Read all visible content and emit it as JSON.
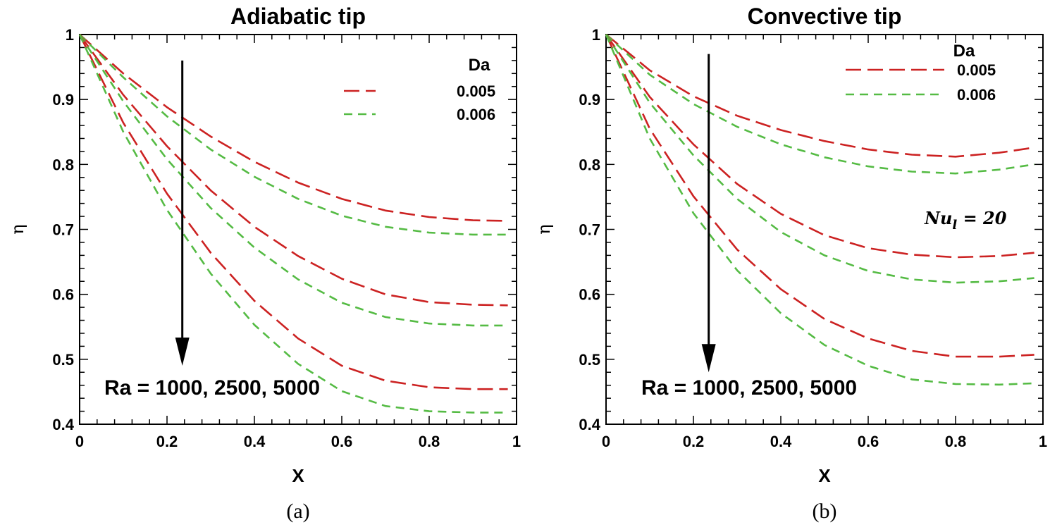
{
  "chart_data": [
    {
      "type": "line",
      "panel_caption": "(a)",
      "title": "Adiabatic tip",
      "xlabel": "X",
      "ylabel": "η",
      "xlim": [
        0,
        1
      ],
      "ylim": [
        0.4,
        1
      ],
      "xticks": [
        "0",
        "0.2",
        "0.4",
        "0.6",
        "0.8",
        "1"
      ],
      "yticks": [
        "0.4",
        "0.5",
        "0.6",
        "0.7",
        "0.8",
        "0.9",
        "1"
      ],
      "grid": false,
      "legend": {
        "title": "Da",
        "placement": "top-right",
        "entries": [
          "0.005",
          "0.006"
        ]
      },
      "annotation": "Ra = 1000, 2500, 5000",
      "arrow": {
        "x": 0.235,
        "y_start": 0.96,
        "y_end": 0.49
      },
      "x": [
        0,
        0.1,
        0.2,
        0.3,
        0.4,
        0.5,
        0.6,
        0.7,
        0.8,
        0.9,
        0.98
      ],
      "series": [
        {
          "name": "0.005",
          "values": [
            1.0,
            0.94,
            0.888,
            0.843,
            0.804,
            0.772,
            0.747,
            0.729,
            0.719,
            0.714,
            0.713
          ]
        },
        {
          "name": "0.006",
          "values": [
            1.0,
            0.934,
            0.874,
            0.823,
            0.781,
            0.747,
            0.721,
            0.704,
            0.695,
            0.692,
            0.692
          ]
        },
        {
          "name": "0.005",
          "values": [
            1.0,
            0.907,
            0.828,
            0.76,
            0.704,
            0.659,
            0.624,
            0.6,
            0.588,
            0.584,
            0.583
          ]
        },
        {
          "name": "0.006",
          "values": [
            1.0,
            0.897,
            0.808,
            0.733,
            0.672,
            0.623,
            0.587,
            0.565,
            0.555,
            0.552,
            0.552
          ]
        },
        {
          "name": "0.005",
          "values": [
            1.0,
            0.864,
            0.755,
            0.664,
            0.59,
            0.532,
            0.49,
            0.467,
            0.457,
            0.454,
            0.454
          ]
        },
        {
          "name": "0.006",
          "values": [
            1.0,
            0.85,
            0.73,
            0.632,
            0.553,
            0.493,
            0.451,
            0.428,
            0.42,
            0.418,
            0.418
          ]
        }
      ]
    },
    {
      "type": "line",
      "panel_caption": "(b)",
      "title": "Convective tip",
      "xlabel": "X",
      "ylabel": "η",
      "xlim": [
        0,
        1
      ],
      "ylim": [
        0.4,
        1
      ],
      "xticks": [
        "0",
        "0.2",
        "0.4",
        "0.6",
        "0.8",
        "1"
      ],
      "yticks": [
        "0.4",
        "0.5",
        "0.6",
        "0.7",
        "0.8",
        "0.9",
        "1"
      ],
      "grid": false,
      "legend": {
        "title": "Da",
        "placement": "top-right",
        "entries": [
          "0.005",
          "0.006"
        ]
      },
      "annotation": "Ra = 1000, 2500, 5000",
      "annotation_2": "Nu_l = 20",
      "arrow": {
        "x": 0.235,
        "y_start": 0.97,
        "y_end": 0.48
      },
      "x": [
        0,
        0.1,
        0.2,
        0.3,
        0.4,
        0.5,
        0.6,
        0.7,
        0.8,
        0.9,
        0.98
      ],
      "series": [
        {
          "name": "0.005",
          "values": [
            1.0,
            0.945,
            0.905,
            0.875,
            0.853,
            0.836,
            0.823,
            0.815,
            0.812,
            0.818,
            0.826
          ]
        },
        {
          "name": "0.006",
          "values": [
            1.0,
            0.938,
            0.893,
            0.858,
            0.831,
            0.811,
            0.797,
            0.789,
            0.786,
            0.792,
            0.8
          ]
        },
        {
          "name": "0.005",
          "values": [
            1.0,
            0.904,
            0.831,
            0.77,
            0.724,
            0.691,
            0.671,
            0.661,
            0.657,
            0.659,
            0.664
          ]
        },
        {
          "name": "0.006",
          "values": [
            1.0,
            0.895,
            0.814,
            0.747,
            0.696,
            0.66,
            0.636,
            0.623,
            0.618,
            0.62,
            0.625
          ]
        },
        {
          "name": "0.005",
          "values": [
            1.0,
            0.855,
            0.751,
            0.669,
            0.608,
            0.562,
            0.532,
            0.513,
            0.504,
            0.504,
            0.507
          ]
        },
        {
          "name": "0.006",
          "values": [
            1.0,
            0.84,
            0.725,
            0.637,
            0.571,
            0.522,
            0.49,
            0.469,
            0.462,
            0.461,
            0.463
          ]
        }
      ]
    }
  ],
  "colors": {
    "da_0005": "#cc2222",
    "da_0006": "#55bb44",
    "axis": "#000000"
  },
  "dash": {
    "da_0005": "long-dash",
    "da_0006": "short-dash"
  }
}
